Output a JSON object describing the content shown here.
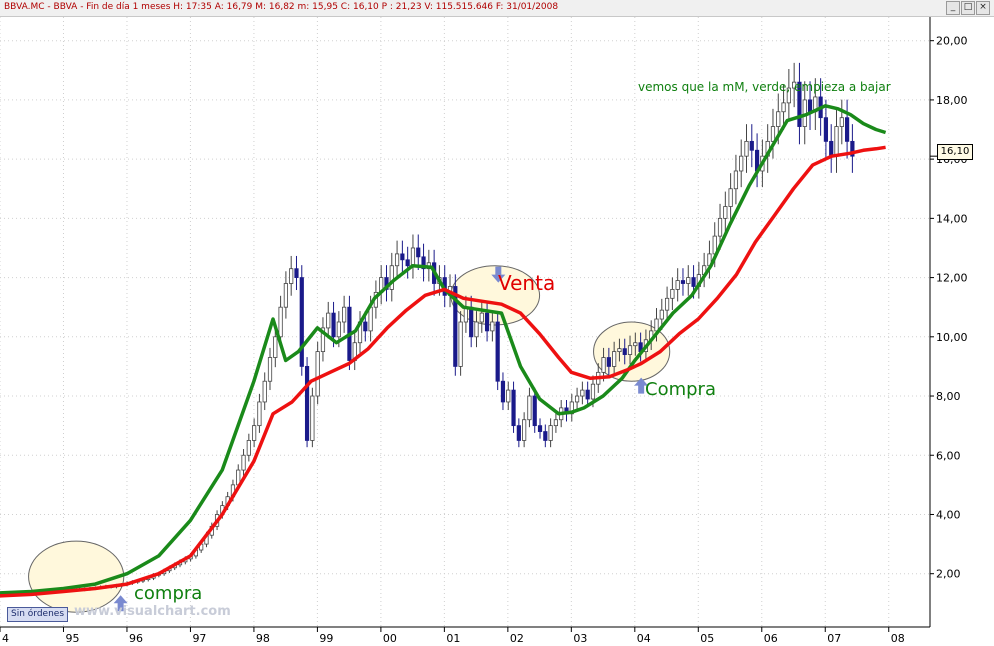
{
  "window": {
    "title": "BBVA.MC - BBVA - Fin de día 1 meses  H: 17:35   A: 16,79   M: 16,82   m: 15,95   C: 16,10   P : 21,23   V: 115.515.646   F: 31/01/2008",
    "buttons": [
      "_",
      "□",
      "×"
    ]
  },
  "orders_label": "Sin órdenes",
  "watermark": "www.visualchart.com",
  "last_price": "16,10",
  "annotations": {
    "venta": "Venta",
    "compra_2004": "Compra",
    "compra_1995": "compra",
    "note": "vemos que la mM, verde, empieza a bajar"
  },
  "colors": {
    "fast_ma": "#1a8a1a",
    "slow_ma": "#ee1111",
    "candle_up": "#ffffff",
    "candle_down": "#1a1a8a",
    "ellipse_fill": "#fff8dc",
    "arrow": "#7a8ad0"
  },
  "chart_data": {
    "type": "line",
    "title": "",
    "xlabel": "",
    "ylabel": "",
    "x_ticks": [
      "4",
      "95",
      "96",
      "97",
      "98",
      "99",
      "00",
      "01",
      "02",
      "03",
      "04",
      "05",
      "06",
      "07",
      "08"
    ],
    "y_ticks": [
      "2,00",
      "4,00",
      "6,00",
      "8,00",
      "10,00",
      "12,00",
      "14,00",
      "16,00",
      "18,00",
      "20,00"
    ],
    "ylim": [
      0.2,
      20.8
    ],
    "xlim": [
      1994.0,
      2008.65
    ],
    "grid": true,
    "series": [
      {
        "name": "",
        "role": "fast_ma",
        "x": [
          1994.0,
          1994.5,
          1995.0,
          1995.5,
          1996.0,
          1996.5,
          1997.0,
          1997.5,
          1998.0,
          1998.3,
          1998.5,
          1998.7,
          1999.0,
          1999.3,
          1999.6,
          1999.9,
          2000.2,
          2000.5,
          2000.8,
          2001.0,
          2001.3,
          2001.6,
          2001.9,
          2002.2,
          2002.5,
          2002.8,
          2003.0,
          2003.2,
          2003.5,
          2003.8,
          2004.0,
          2004.3,
          2004.6,
          2004.9,
          2005.2,
          2005.5,
          2005.8,
          2006.1,
          2006.4,
          2006.7,
          2007.0,
          2007.2,
          2007.4,
          2007.6,
          2007.8,
          2007.95
        ],
        "y": [
          1.35,
          1.4,
          1.5,
          1.65,
          2.0,
          2.6,
          3.8,
          5.5,
          8.5,
          10.6,
          9.2,
          9.5,
          10.3,
          9.8,
          10.2,
          11.3,
          11.9,
          12.4,
          12.35,
          11.6,
          11.0,
          10.9,
          10.8,
          9.0,
          7.9,
          7.4,
          7.45,
          7.6,
          8.0,
          8.6,
          9.2,
          10.0,
          10.8,
          11.4,
          12.4,
          13.8,
          15.1,
          16.2,
          17.3,
          17.5,
          17.8,
          17.7,
          17.5,
          17.2,
          17.0,
          16.9
        ]
      },
      {
        "name": "",
        "role": "slow_ma",
        "x": [
          1994.0,
          1994.5,
          1995.0,
          1995.5,
          1996.0,
          1996.5,
          1997.0,
          1997.5,
          1998.0,
          1998.3,
          1998.6,
          1998.9,
          1999.2,
          1999.5,
          1999.8,
          2000.1,
          2000.4,
          2000.7,
          2001.0,
          2001.3,
          2001.6,
          2001.9,
          2002.2,
          2002.5,
          2002.8,
          2003.0,
          2003.3,
          2003.6,
          2003.9,
          2004.1,
          2004.4,
          2004.7,
          2005.0,
          2005.3,
          2005.6,
          2005.9,
          2006.2,
          2006.5,
          2006.8,
          2007.1,
          2007.4,
          2007.6,
          2007.8,
          2007.95
        ],
        "y": [
          1.25,
          1.3,
          1.4,
          1.5,
          1.65,
          2.0,
          2.6,
          4.0,
          5.8,
          7.4,
          7.8,
          8.5,
          8.8,
          9.1,
          9.6,
          10.3,
          10.9,
          11.4,
          11.6,
          11.3,
          11.2,
          11.1,
          10.8,
          10.1,
          9.3,
          8.8,
          8.6,
          8.65,
          8.9,
          9.1,
          9.5,
          10.1,
          10.6,
          11.3,
          12.1,
          13.2,
          14.1,
          15.0,
          15.8,
          16.1,
          16.2,
          16.3,
          16.35,
          16.4
        ]
      }
    ],
    "candles": {
      "x_start": 1994.0,
      "x_step": 0.0834,
      "close": [
        1.28,
        1.3,
        1.32,
        1.3,
        1.33,
        1.35,
        1.37,
        1.36,
        1.38,
        1.4,
        1.38,
        1.42,
        1.44,
        1.45,
        1.47,
        1.46,
        1.48,
        1.5,
        1.52,
        1.55,
        1.57,
        1.56,
        1.6,
        1.63,
        1.68,
        1.72,
        1.75,
        1.8,
        1.85,
        1.95,
        2.0,
        2.1,
        2.2,
        2.3,
        2.4,
        2.5,
        2.6,
        2.8,
        3.0,
        3.3,
        3.6,
        4.0,
        4.3,
        4.6,
        5.0,
        5.5,
        6.0,
        6.5,
        7.0,
        7.8,
        8.5,
        9.3,
        10.0,
        11.0,
        11.8,
        12.3,
        12.0,
        9.0,
        6.5,
        8.0,
        9.5,
        10.3,
        10.8,
        10.0,
        10.5,
        11.0,
        9.2,
        9.8,
        10.5,
        10.2,
        11.0,
        11.5,
        12.0,
        11.6,
        12.4,
        12.8,
        12.6,
        12.4,
        13.0,
        12.7,
        12.3,
        12.5,
        11.8,
        12.0,
        11.4,
        11.7,
        9.0,
        10.5,
        11.0,
        10.0,
        10.5,
        10.8,
        10.2,
        10.5,
        8.5,
        7.8,
        8.2,
        7.0,
        6.5,
        7.2,
        8.0,
        7.0,
        6.8,
        6.5,
        7.0,
        7.2,
        7.6,
        7.4,
        7.8,
        8.0,
        8.2,
        7.9,
        8.4,
        8.8,
        9.3,
        9.0,
        9.5,
        9.6,
        9.4,
        9.7,
        9.8,
        9.5,
        9.9,
        10.2,
        10.6,
        10.9,
        11.3,
        11.6,
        11.9,
        11.8,
        12.0,
        11.7,
        12.1,
        12.4,
        12.8,
        13.4,
        14.0,
        14.4,
        15.0,
        15.6,
        16.1,
        16.6,
        16.3,
        15.6,
        16.1,
        16.6,
        17.1,
        17.6,
        17.9,
        18.4,
        18.6,
        17.1,
        18.0,
        17.6,
        18.1,
        17.4,
        16.6,
        16.1,
        17.1,
        17.4,
        16.6,
        16.1
      ]
    }
  }
}
